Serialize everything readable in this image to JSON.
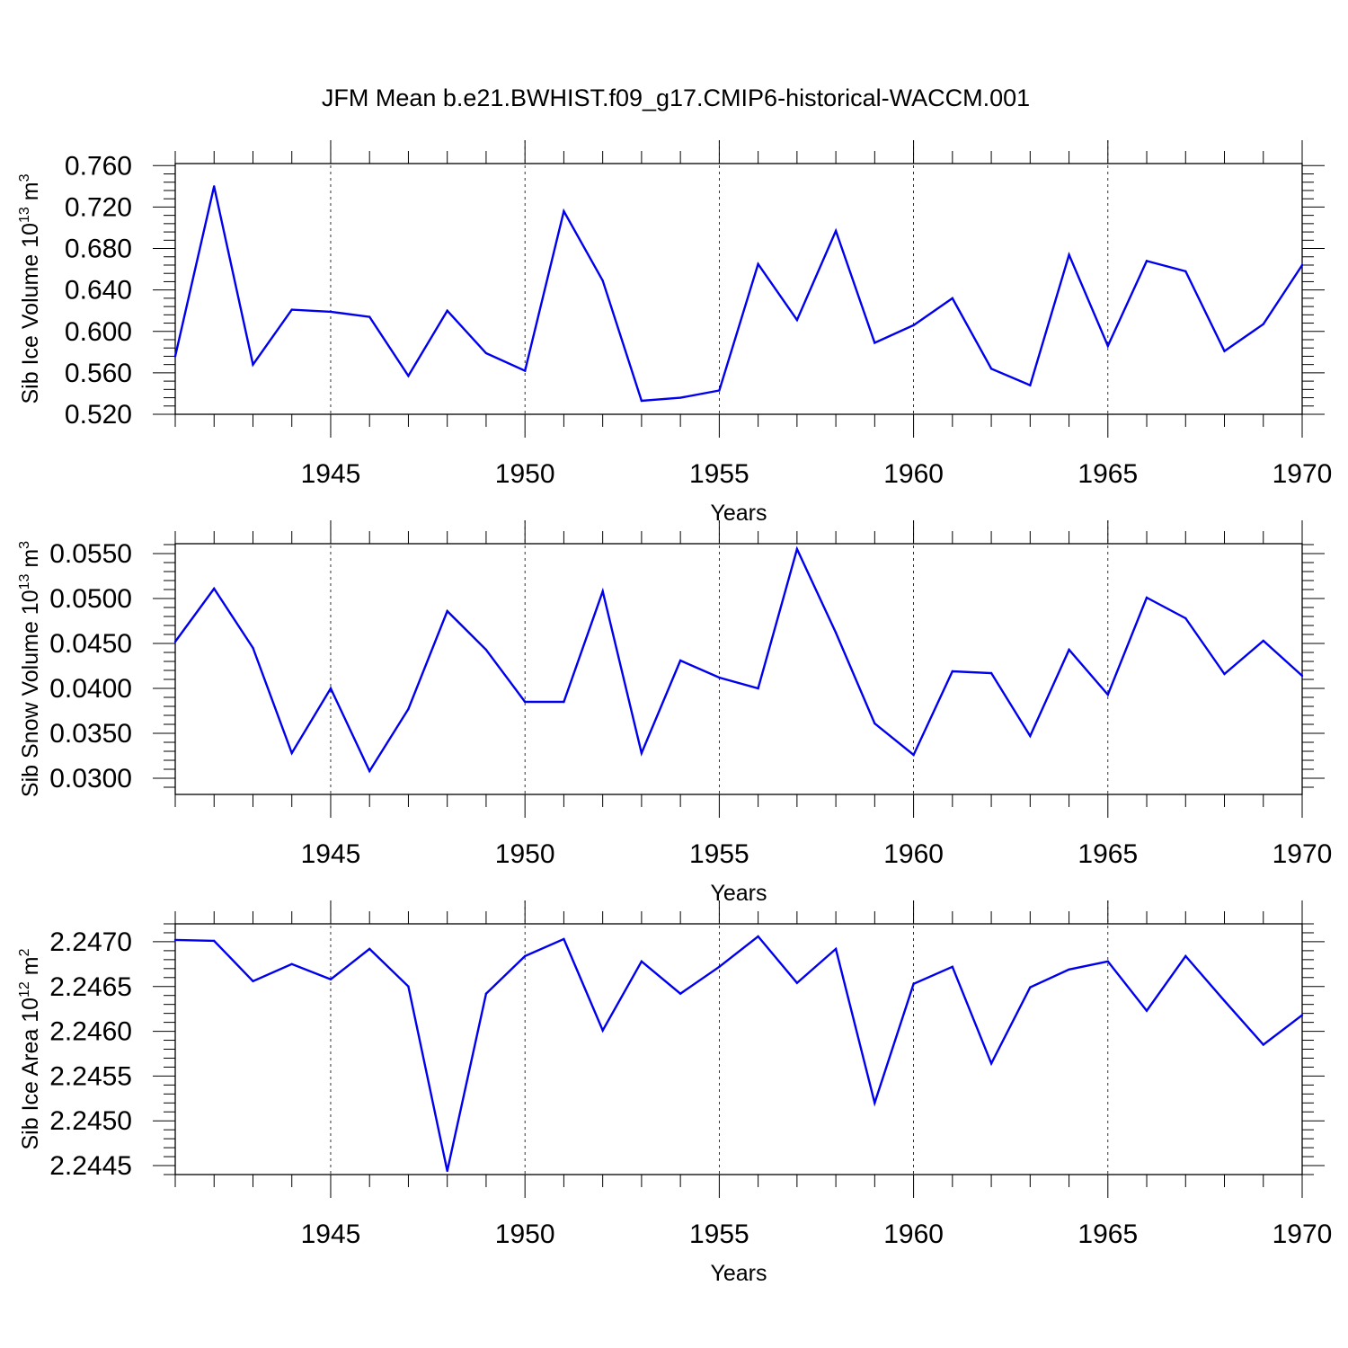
{
  "title": "JFM Mean b.e21.BWHIST.f09_g17.CMIP6-historical-WACCM.001",
  "line_color": "#0000ee",
  "chart_data": [
    {
      "type": "line",
      "ylabel": "Sib Ice Volume 10",
      "ylabel_exp": "13",
      "ylabel_unit": " m",
      "ylabel_unit_exp": "3",
      "xlabel": "Years",
      "xlim": [
        1941,
        1970
      ],
      "ylim": [
        0.52,
        0.762
      ],
      "yticks": [
        0.52,
        0.56,
        0.6,
        0.64,
        0.68,
        0.72,
        0.76
      ],
      "ytick_labels": [
        "0.520",
        "0.560",
        "0.600",
        "0.640",
        "0.680",
        "0.720",
        "0.760"
      ],
      "xticks": [
        1945,
        1950,
        1955,
        1960,
        1965,
        1970
      ],
      "xtick_labels": [
        "1945",
        "1950",
        "1955",
        "1960",
        "1965",
        "1970"
      ],
      "grid": "dashed vertical at major x ticks",
      "x": [
        1941,
        1942,
        1943,
        1944,
        1945,
        1946,
        1947,
        1948,
        1949,
        1950,
        1951,
        1952,
        1953,
        1954,
        1955,
        1956,
        1957,
        1958,
        1959,
        1960,
        1961,
        1962,
        1963,
        1964,
        1965,
        1966,
        1967,
        1968,
        1969,
        1970
      ],
      "values": [
        0.576,
        0.74,
        0.568,
        0.621,
        0.619,
        0.614,
        0.557,
        0.62,
        0.579,
        0.562,
        0.716,
        0.649,
        0.533,
        0.536,
        0.543,
        0.665,
        0.611,
        0.697,
        0.589,
        0.606,
        0.632,
        0.564,
        0.548,
        0.674,
        0.586,
        0.668,
        0.658,
        0.581,
        0.607,
        0.664
      ]
    },
    {
      "type": "line",
      "ylabel": "Sib Snow Volume 10",
      "ylabel_exp": "13",
      "ylabel_unit": " m",
      "ylabel_unit_exp": "3",
      "xlabel": "Years",
      "xlim": [
        1941,
        1970
      ],
      "ylim": [
        0.0282,
        0.0561
      ],
      "yticks": [
        0.03,
        0.035,
        0.04,
        0.045,
        0.05,
        0.055
      ],
      "ytick_labels": [
        "0.0300",
        "0.0350",
        "0.0400",
        "0.0450",
        "0.0500",
        "0.0550"
      ],
      "xticks": [
        1945,
        1950,
        1955,
        1960,
        1965,
        1970
      ],
      "xtick_labels": [
        "1945",
        "1950",
        "1955",
        "1960",
        "1965",
        "1970"
      ],
      "grid": "dashed vertical at major x ticks",
      "x": [
        1941,
        1942,
        1943,
        1944,
        1945,
        1946,
        1947,
        1948,
        1949,
        1950,
        1951,
        1952,
        1953,
        1954,
        1955,
        1956,
        1957,
        1958,
        1959,
        1960,
        1961,
        1962,
        1963,
        1964,
        1965,
        1966,
        1967,
        1968,
        1969,
        1970
      ],
      "values": [
        0.0452,
        0.0511,
        0.0445,
        0.0328,
        0.04,
        0.0308,
        0.0377,
        0.0486,
        0.0443,
        0.0385,
        0.0385,
        0.0508,
        0.0328,
        0.0431,
        0.0412,
        0.04,
        0.0555,
        0.0462,
        0.0361,
        0.0326,
        0.0419,
        0.0417,
        0.0347,
        0.0443,
        0.0393,
        0.0501,
        0.0478,
        0.0416,
        0.0453,
        0.0414
      ]
    },
    {
      "type": "line",
      "ylabel": "Sib Ice Area 10",
      "ylabel_exp": "12",
      "ylabel_unit": " m",
      "ylabel_unit_exp": "2",
      "xlabel": "Years",
      "xlim": [
        1941,
        1970
      ],
      "ylim": [
        2.2444,
        2.2472
      ],
      "yticks": [
        2.2445,
        2.245,
        2.2455,
        2.246,
        2.2465,
        2.247
      ],
      "ytick_labels": [
        "2.2445",
        "2.2450",
        "2.2455",
        "2.2460",
        "2.2465",
        "2.2470"
      ],
      "xticks": [
        1945,
        1950,
        1955,
        1960,
        1965,
        1970
      ],
      "xtick_labels": [
        "1945",
        "1950",
        "1955",
        "1960",
        "1965",
        "1970"
      ],
      "grid": "dashed vertical at major x ticks",
      "x": [
        1941,
        1942,
        1943,
        1944,
        1945,
        1946,
        1947,
        1948,
        1949,
        1950,
        1951,
        1952,
        1953,
        1954,
        1955,
        1956,
        1957,
        1958,
        1959,
        1960,
        1961,
        1962,
        1963,
        1964,
        1965,
        1966,
        1967,
        1968,
        1969,
        1970
      ],
      "values": [
        2.24702,
        2.24701,
        2.24656,
        2.24675,
        2.24658,
        2.24692,
        2.2465,
        2.24444,
        2.24642,
        2.24684,
        2.24703,
        2.24601,
        2.24678,
        2.24642,
        2.24672,
        2.24706,
        2.24654,
        2.24692,
        2.2452,
        2.24653,
        2.24672,
        2.24564,
        2.24649,
        2.24669,
        2.24678,
        2.24623,
        2.24684,
        2.24634,
        2.24585,
        2.24618
      ]
    }
  ]
}
